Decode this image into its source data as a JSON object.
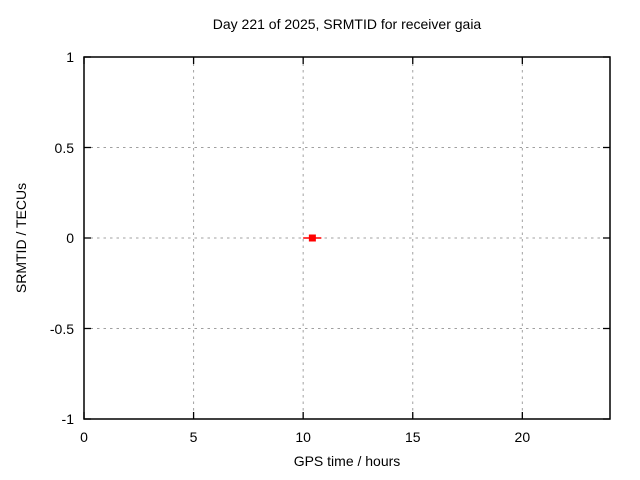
{
  "chart_data": {
    "type": "line",
    "title": "Day 221 of 2025, SRMTID for receiver gaia",
    "xlabel": "GPS time / hours",
    "ylabel": "SRMTID / TECUs",
    "xlim": [
      0,
      24
    ],
    "ylim": [
      -1,
      1
    ],
    "xticks": [
      0,
      5,
      10,
      15,
      20
    ],
    "xtick_labels": [
      "0",
      "5",
      "10",
      "15",
      "20"
    ],
    "yticks": [
      1,
      0.5,
      0,
      -0.5,
      -1
    ],
    "ytick_labels": [
      "1",
      "0.5",
      "0",
      "-0.5",
      "-1"
    ],
    "grid": true,
    "legend_position": "none",
    "series": [
      {
        "name": "SRMTID",
        "color": "#ff0000",
        "marker": "filled-square",
        "x": [
          10.0,
          10.83
        ],
        "y": [
          0,
          0
        ],
        "marker_points": [
          {
            "x": 10.42,
            "y": 0
          }
        ]
      }
    ],
    "colors": {
      "axis": "#000000",
      "grid": "#a0a0a0",
      "background": "#ffffff",
      "point": "#ff0000"
    }
  }
}
